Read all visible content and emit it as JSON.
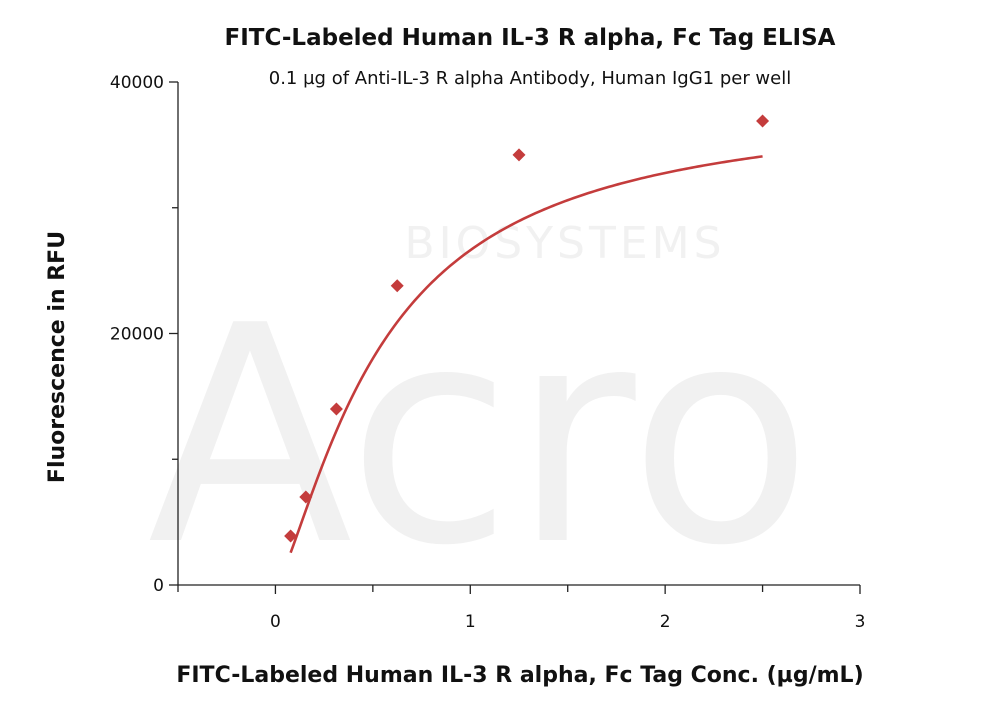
{
  "chart_data": {
    "type": "scatter",
    "title": "FITC-Labeled Human IL-3 R alpha, Fc Tag ELISA",
    "subtitle": "0.1 µg of Anti-IL-3 R alpha Antibody, Human IgG1 per well",
    "xlabel": "FITC-Labeled Human IL-3 R alpha, Fc Tag Conc. (µg/mL)",
    "ylabel": "Fluorescence in RFU",
    "xlim": [
      -0.5,
      3
    ],
    "ylim": [
      0,
      40000
    ],
    "x_ticks": [
      0,
      1,
      2,
      3
    ],
    "y_ticks": [
      0,
      20000,
      40000
    ],
    "y_minor_ticks": [
      10000,
      30000
    ],
    "x_minor_ticks": [
      -0.5,
      0.5,
      1.5,
      2.5
    ],
    "series": [
      {
        "color": "#c43c3c",
        "marker": "diamond",
        "x": [
          0.078,
          0.156,
          0.313,
          0.625,
          1.25,
          2.5
        ],
        "y": [
          3900,
          7000,
          14000,
          23800,
          34200,
          36900
        ],
        "fit": "four-parameter logistic curve"
      }
    ],
    "grid": false,
    "legend": "none"
  },
  "watermark": {
    "brand": "Acro",
    "sub": "BIOSYSTEMS"
  }
}
